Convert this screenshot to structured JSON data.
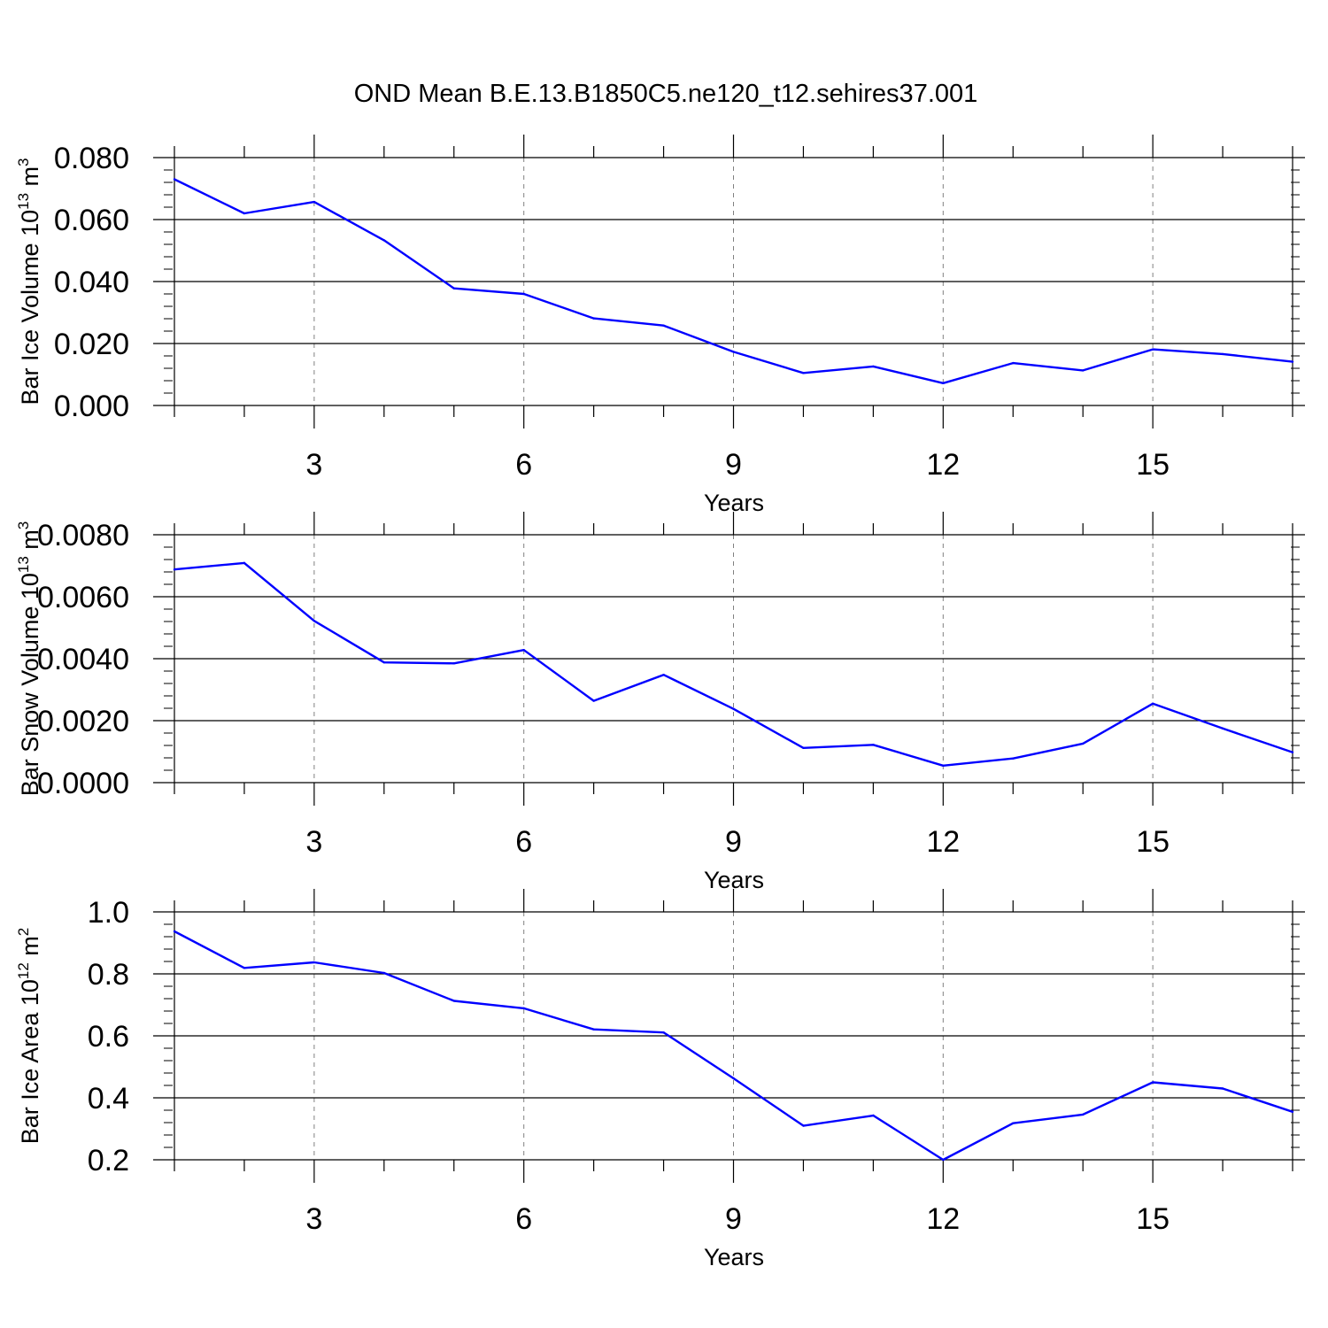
{
  "title": "OND Mean B.E.13.B1850C5.ne120_t12.sehires37.001",
  "colors": {
    "series_line": "#0000ff",
    "axis": "#000000",
    "grid": "#808080",
    "background": "#ffffff"
  },
  "chart_data": [
    {
      "type": "line",
      "ylabel": {
        "prefix": "Bar Ice Volume 10",
        "exp": "13",
        "unit": " m",
        "unit_exp": "3"
      },
      "xlabel": "Years",
      "xlim": [
        1,
        17
      ],
      "ylim": [
        0,
        0.08
      ],
      "x_ticks": [
        3,
        6,
        9,
        12,
        15
      ],
      "x_tick_labels": [
        "3",
        "6",
        "9",
        "12",
        "15"
      ],
      "y_ticks": [
        0,
        0.02,
        0.04,
        0.06,
        0.08
      ],
      "y_tick_labels": [
        "0.000",
        "0.020",
        "0.040",
        "0.060",
        "0.080"
      ],
      "grid": "vertical dashed at major x ticks",
      "x": [
        1,
        2,
        3,
        4,
        5,
        6,
        7,
        8,
        9,
        10,
        11,
        12,
        13,
        14,
        15,
        16,
        17
      ],
      "values": [
        0.073,
        0.062,
        0.0657,
        0.0533,
        0.0378,
        0.036,
        0.0281,
        0.0258,
        0.0173,
        0.0105,
        0.0126,
        0.0072,
        0.0137,
        0.0113,
        0.0181,
        0.0166,
        0.0141
      ]
    },
    {
      "type": "line",
      "ylabel": {
        "prefix": "Bar Snow Volume 10",
        "exp": "13",
        "unit": " m",
        "unit_exp": "3"
      },
      "xlabel": "Years",
      "xlim": [
        1,
        17
      ],
      "ylim": [
        0,
        0.008
      ],
      "x_ticks": [
        3,
        6,
        9,
        12,
        15
      ],
      "x_tick_labels": [
        "3",
        "6",
        "9",
        "12",
        "15"
      ],
      "y_ticks": [
        0,
        0.002,
        0.004,
        0.006,
        0.008
      ],
      "y_tick_labels": [
        "0.0000",
        "0.0020",
        "0.0040",
        "0.0060",
        "0.0080"
      ],
      "grid": "vertical dashed at major x ticks",
      "x": [
        1,
        2,
        3,
        4,
        5,
        6,
        7,
        8,
        9,
        10,
        11,
        12,
        13,
        14,
        15,
        16,
        17
      ],
      "values": [
        0.00688,
        0.00709,
        0.00522,
        0.00388,
        0.00385,
        0.00428,
        0.00264,
        0.00348,
        0.00238,
        0.00112,
        0.00122,
        0.00055,
        0.00078,
        0.00126,
        0.00255,
        0.00175,
        0.00098
      ]
    },
    {
      "type": "line",
      "ylabel": {
        "prefix": "Bar Ice Area 10",
        "exp": "12",
        "unit": " m",
        "unit_exp": "2"
      },
      "xlabel": "Years",
      "xlim": [
        1,
        17
      ],
      "ylim": [
        0.2,
        1.0
      ],
      "x_ticks": [
        3,
        6,
        9,
        12,
        15
      ],
      "x_tick_labels": [
        "3",
        "6",
        "9",
        "12",
        "15"
      ],
      "y_ticks": [
        0.2,
        0.4,
        0.6,
        0.8,
        1.0
      ],
      "y_tick_labels": [
        "0.2",
        "0.4",
        "0.6",
        "0.8",
        "1.0"
      ],
      "grid": "vertical dashed at major x ticks",
      "x": [
        1,
        2,
        3,
        4,
        5,
        6,
        7,
        8,
        9,
        10,
        11,
        12,
        13,
        14,
        15,
        16,
        17
      ],
      "values": [
        0.937,
        0.819,
        0.837,
        0.803,
        0.713,
        0.689,
        0.621,
        0.611,
        0.463,
        0.31,
        0.343,
        0.2,
        0.318,
        0.346,
        0.45,
        0.43,
        0.355
      ]
    }
  ]
}
